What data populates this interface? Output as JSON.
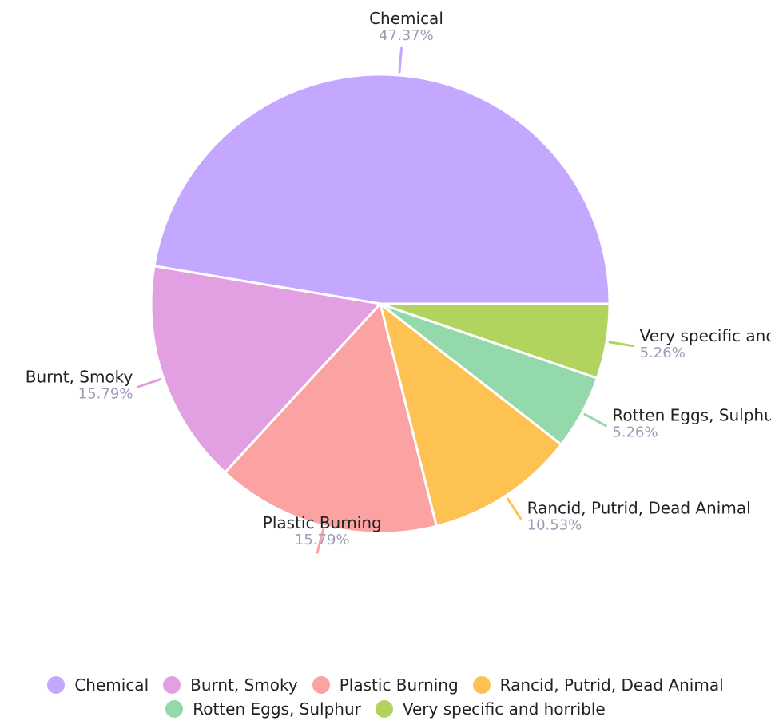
{
  "chart_data": {
    "type": "pie",
    "categories": [
      "Chemical",
      "Burnt, Smoky",
      "Plastic Burning",
      "Rancid, Putrid, Dead Animal",
      "Rotten Eggs, Sulphur",
      "Very specific and horrible"
    ],
    "values": [
      47.37,
      15.79,
      15.79,
      10.53,
      5.26,
      5.26
    ],
    "value_labels": [
      "47.37%",
      "15.79%",
      "15.79%",
      "10.53%",
      "5.26%",
      "5.26%"
    ],
    "colors": [
      "#c4a7ff",
      "#e29fe2",
      "#fba3a3",
      "#fec253",
      "#94d9ac",
      "#b1d45e"
    ],
    "legend": "bottom",
    "start_angle": "3 o'clock",
    "direction": "counterclockwise"
  }
}
